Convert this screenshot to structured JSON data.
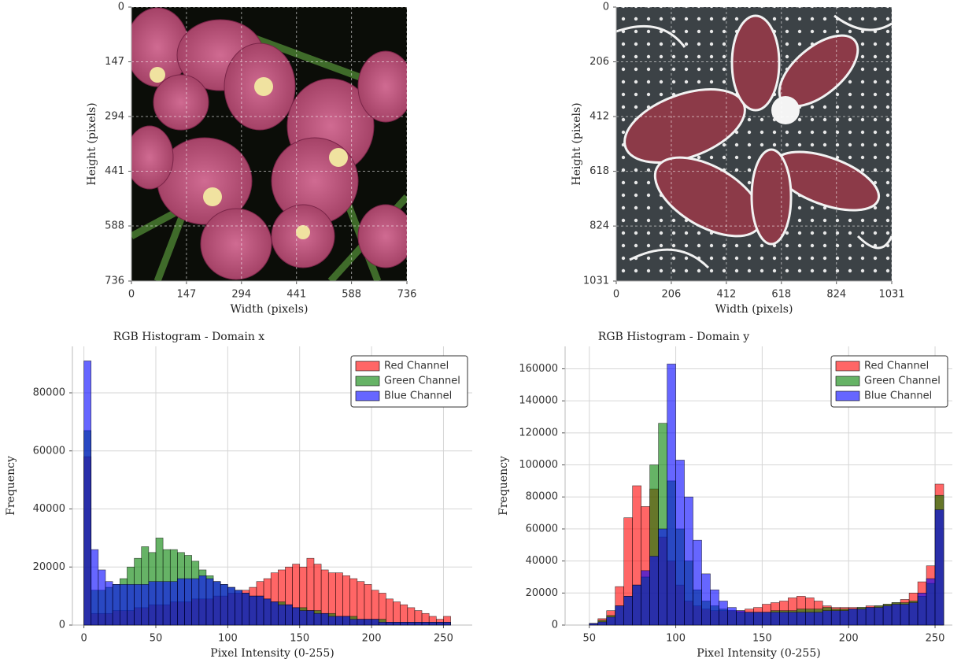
{
  "chart_data": [
    {
      "type": "image",
      "xlabel": "Width (pixels)",
      "ylabel": "Height (pixels)",
      "xlim": [
        0,
        736
      ],
      "ylim": [
        736,
        0
      ],
      "xticks": [
        0,
        147,
        294,
        441,
        588,
        736
      ],
      "yticks": [
        0,
        147,
        294,
        441,
        588,
        736
      ],
      "grid": true
    },
    {
      "type": "image",
      "xlabel": "Width (pixels)",
      "ylabel": "Height (pixels)",
      "xlim": [
        0,
        1031
      ],
      "ylim": [
        1031,
        0
      ],
      "xticks": [
        0,
        206,
        412,
        618,
        824,
        1031
      ],
      "yticks": [
        0,
        206,
        412,
        618,
        824,
        1031
      ],
      "grid": true
    },
    {
      "type": "histogram",
      "title": "RGB Histogram - Domain x",
      "xlabel": "Pixel Intensity (0-255)",
      "ylabel": "Frequency",
      "xlim": [
        -8,
        270
      ],
      "ylim": [
        0,
        96000
      ],
      "xticks": [
        0,
        50,
        100,
        150,
        200,
        250
      ],
      "yticks": [
        0,
        20000,
        40000,
        60000,
        80000
      ],
      "grid": true,
      "legend": "upper right",
      "bins": [
        0,
        5,
        10,
        15,
        20,
        25,
        30,
        35,
        40,
        45,
        50,
        55,
        60,
        65,
        70,
        75,
        80,
        85,
        90,
        95,
        100,
        105,
        110,
        115,
        120,
        125,
        130,
        135,
        140,
        145,
        150,
        155,
        160,
        165,
        170,
        175,
        180,
        185,
        190,
        195,
        200,
        205,
        210,
        215,
        220,
        225,
        230,
        235,
        240,
        245,
        250,
        255
      ],
      "series": [
        {
          "name": "Red Channel",
          "color": "#ff0000",
          "values": [
            58000,
            4000,
            4000,
            4000,
            5000,
            5000,
            5000,
            6000,
            6000,
            7000,
            7000,
            7000,
            8000,
            8000,
            8000,
            9000,
            9000,
            9000,
            10000,
            10000,
            11000,
            11000,
            12000,
            13000,
            15000,
            16000,
            18000,
            19000,
            20000,
            21000,
            20000,
            23000,
            21000,
            19000,
            18000,
            18000,
            17000,
            16000,
            15000,
            14000,
            12000,
            11000,
            9000,
            8000,
            7000,
            6000,
            5000,
            4000,
            3000,
            2000,
            3000
          ]
        },
        {
          "name": "Green Channel",
          "color": "#008000",
          "values": [
            67000,
            12000,
            12000,
            13000,
            14000,
            16000,
            20000,
            23000,
            27000,
            25000,
            30000,
            26000,
            26000,
            25000,
            24000,
            22000,
            19000,
            17000,
            15000,
            14000,
            13000,
            12000,
            11000,
            10000,
            10000,
            9000,
            8000,
            8000,
            7000,
            6000,
            6000,
            5000,
            5000,
            4000,
            4000,
            3000,
            3000,
            3000,
            2000,
            2000,
            2000,
            2000,
            1000,
            1000,
            1000,
            1000,
            1000,
            1000,
            1000,
            1000,
            1000
          ]
        },
        {
          "name": "Blue Channel",
          "color": "#0000ff",
          "values": [
            91000,
            26000,
            19000,
            15000,
            14000,
            14000,
            14000,
            14000,
            14000,
            15000,
            15000,
            15000,
            15000,
            16000,
            16000,
            16000,
            17000,
            16000,
            15000,
            14000,
            13000,
            12000,
            11000,
            10000,
            10000,
            9000,
            8000,
            7000,
            7000,
            6000,
            5000,
            5000,
            4000,
            4000,
            3000,
            3000,
            3000,
            2000,
            2000,
            2000,
            2000,
            1000,
            1000,
            1000,
            1000,
            1000,
            1000,
            1000,
            1000,
            1000,
            1000
          ]
        }
      ]
    },
    {
      "type": "histogram",
      "title": "RGB Histogram - Domain y",
      "xlabel": "Pixel Intensity (0-255)",
      "ylabel": "Frequency",
      "xlim": [
        36,
        260
      ],
      "ylim": [
        0,
        174000
      ],
      "xticks": [
        50,
        100,
        150,
        200,
        250
      ],
      "yticks": [
        0,
        20000,
        40000,
        60000,
        80000,
        100000,
        120000,
        140000,
        160000
      ],
      "grid": true,
      "legend": "upper right",
      "bins": [
        40,
        45,
        50,
        55,
        60,
        65,
        70,
        75,
        80,
        85,
        90,
        95,
        100,
        105,
        110,
        115,
        120,
        125,
        130,
        135,
        140,
        145,
        150,
        155,
        160,
        165,
        170,
        175,
        180,
        185,
        190,
        195,
        200,
        205,
        210,
        215,
        220,
        225,
        230,
        235,
        240,
        245,
        250,
        255
      ],
      "series": [
        {
          "name": "Red Channel",
          "color": "#ff0000",
          "values": [
            0,
            0,
            1000,
            4000,
            9000,
            24000,
            67000,
            87000,
            74000,
            85000,
            55000,
            40000,
            25000,
            15000,
            12000,
            10000,
            9000,
            9000,
            9000,
            9000,
            10000,
            11000,
            13000,
            14000,
            15000,
            17000,
            18000,
            17000,
            15000,
            12000,
            11000,
            11000,
            11000,
            11000,
            12000,
            12000,
            13000,
            14000,
            16000,
            20000,
            27000,
            37000,
            88000
          ]
        },
        {
          "name": "Green Channel",
          "color": "#008000",
          "values": [
            0,
            0,
            1000,
            3000,
            6000,
            12000,
            18000,
            25000,
            30000,
            100000,
            126000,
            90000,
            60000,
            40000,
            22000,
            15000,
            12000,
            10000,
            9000,
            8000,
            8000,
            8000,
            8000,
            9000,
            9000,
            9000,
            10000,
            10000,
            10000,
            11000,
            10000,
            10000,
            10000,
            11000,
            11000,
            12000,
            13000,
            14000,
            14000,
            15000,
            18000,
            26000,
            81000
          ]
        },
        {
          "name": "Blue Channel",
          "color": "#0000ff",
          "values": [
            0,
            0,
            1000,
            2000,
            5000,
            12000,
            18000,
            25000,
            34000,
            43000,
            60000,
            163000,
            103000,
            80000,
            53000,
            32000,
            22000,
            15000,
            11000,
            9000,
            8000,
            8000,
            8000,
            8000,
            8000,
            8000,
            8000,
            8000,
            8000,
            9000,
            9000,
            9000,
            10000,
            10000,
            11000,
            11000,
            12000,
            13000,
            13000,
            14000,
            20000,
            29000,
            72000
          ]
        }
      ]
    }
  ]
}
